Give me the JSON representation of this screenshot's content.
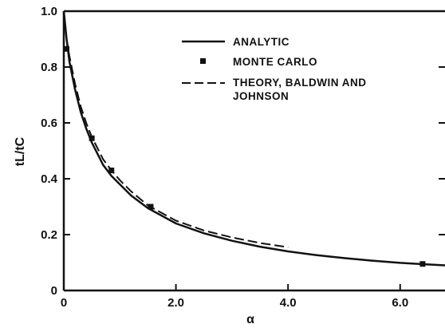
{
  "chart_data": {
    "type": "line",
    "title": "",
    "xlabel": "α",
    "ylabel": "tL/tC",
    "xlim": [
      0,
      6.8
    ],
    "ylim": [
      0,
      1.0
    ],
    "x_ticks": [
      0,
      2.0,
      4.0,
      6.0
    ],
    "x_tick_labels": [
      "0",
      "2.0",
      "4.0",
      "6.0"
    ],
    "y_ticks": [
      0,
      0.2,
      0.4,
      0.6,
      0.8,
      1.0
    ],
    "y_tick_labels": [
      "0",
      "0.2",
      "0.4",
      "0.6",
      "0.8",
      "1.0"
    ],
    "grid": false,
    "legend_position": "top-right",
    "legend": [
      "ANALYTIC",
      "MONTE CARLO",
      "THEORY, BALDWIN AND",
      "JOHNSON"
    ],
    "series": [
      {
        "name": "ANALYTIC",
        "style": "solid",
        "points": [
          [
            0,
            1.0
          ],
          [
            0.05,
            0.9
          ],
          [
            0.1,
            0.82
          ],
          [
            0.2,
            0.72
          ],
          [
            0.3,
            0.64
          ],
          [
            0.4,
            0.58
          ],
          [
            0.5,
            0.53
          ],
          [
            0.7,
            0.45
          ],
          [
            0.85,
            0.41
          ],
          [
            1.0,
            0.38
          ],
          [
            1.2,
            0.34
          ],
          [
            1.5,
            0.295
          ],
          [
            2.0,
            0.24
          ],
          [
            2.5,
            0.205
          ],
          [
            3.0,
            0.178
          ],
          [
            3.5,
            0.157
          ],
          [
            4.0,
            0.14
          ],
          [
            4.5,
            0.127
          ],
          [
            5.0,
            0.116
          ],
          [
            5.5,
            0.107
          ],
          [
            6.0,
            0.099
          ],
          [
            6.5,
            0.093
          ],
          [
            6.8,
            0.09
          ]
        ]
      },
      {
        "name": "MONTE CARLO",
        "style": "markers",
        "points": [
          [
            0.05,
            0.865
          ],
          [
            0.5,
            0.545
          ],
          [
            0.85,
            0.43
          ],
          [
            1.55,
            0.3
          ],
          [
            6.4,
            0.095
          ]
        ]
      },
      {
        "name": "THEORY, BALDWIN AND JOHNSON",
        "style": "dashed",
        "points": [
          [
            0,
            1.0
          ],
          [
            0.05,
            0.9
          ],
          [
            0.1,
            0.84
          ],
          [
            0.2,
            0.74
          ],
          [
            0.3,
            0.66
          ],
          [
            0.4,
            0.6
          ],
          [
            0.5,
            0.55
          ],
          [
            0.7,
            0.47
          ],
          [
            0.85,
            0.43
          ],
          [
            1.0,
            0.395
          ],
          [
            1.2,
            0.355
          ],
          [
            1.5,
            0.305
          ],
          [
            2.0,
            0.25
          ],
          [
            2.5,
            0.215
          ],
          [
            3.0,
            0.19
          ],
          [
            3.5,
            0.17
          ],
          [
            4.0,
            0.155
          ]
        ]
      }
    ]
  }
}
